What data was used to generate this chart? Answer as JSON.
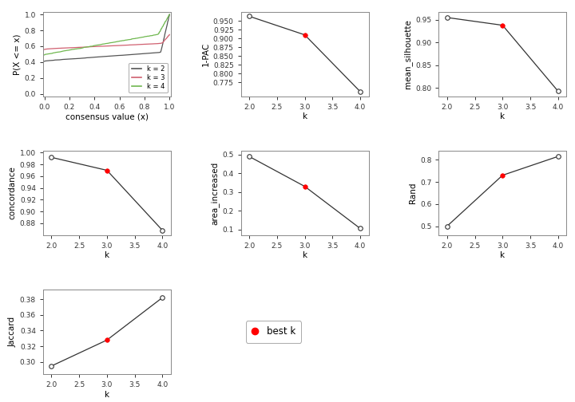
{
  "k_values": [
    2,
    3,
    4
  ],
  "pac_1minus": [
    0.963,
    0.91,
    0.748
  ],
  "pac_best_k": 3,
  "mean_silhouette": [
    0.955,
    0.938,
    0.793
  ],
  "silhouette_best_k": 3,
  "concordance": [
    0.992,
    0.97,
    0.868
  ],
  "concordance_best_k": 3,
  "area_increased": [
    0.49,
    0.33,
    0.105
  ],
  "area_best_k": 3,
  "rand": [
    0.5,
    0.73,
    0.815
  ],
  "rand_best_k": 3,
  "jaccard": [
    0.295,
    0.328,
    0.382
  ],
  "jaccard_best_k": 3,
  "line_color": "#333333",
  "best_k_color": "red",
  "cdf_colors": {
    "k2": "#555555",
    "k3": "#d06070",
    "k4": "#70b850"
  },
  "background": "white",
  "tick_fontsize": 6.5,
  "label_fontsize": 7.5
}
